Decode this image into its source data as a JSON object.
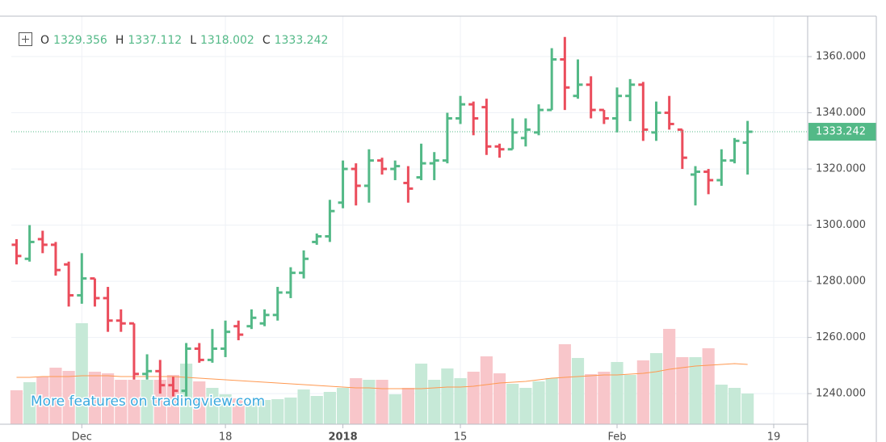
{
  "chart_data": {
    "type": "ohlc",
    "legend_labels": [
      "O",
      "H",
      "L",
      "C"
    ],
    "watermark": "More features on tradingview.com",
    "up_color": "#53b987",
    "down_color": "#eb4d5c",
    "volume_up_color": "#c6e9d7",
    "volume_down_color": "#f8c6ca",
    "volume_ma_color": "#ff9850",
    "grid": true,
    "open": [
      1293,
      1288,
      1295,
      1293,
      1286,
      1275,
      1281,
      1274,
      1266,
      1265,
      1247,
      1248,
      1243,
      1241,
      1256,
      1252,
      1256,
      1264,
      1264,
      1265,
      1268,
      1276,
      1283,
      1294,
      1296,
      1308,
      1320,
      1314,
      1323,
      1320,
      1315,
      1317,
      1322,
      1323,
      1338,
      1343,
      1342,
      1328,
      1327,
      1331,
      1333,
      1341,
      1359,
      1346,
      1350,
      1341,
      1338,
      1346,
      1350,
      1333,
      1340,
      1334,
      1318,
      1319,
      1316,
      1323,
      1329.356
    ],
    "high": [
      1295,
      1300,
      1298,
      1294,
      1287,
      1290,
      1281,
      1278,
      1270,
      1265,
      1254,
      1252,
      1246,
      1258,
      1258,
      1263,
      1266,
      1266,
      1270,
      1270,
      1278,
      1285,
      1291,
      1297,
      1309,
      1323,
      1322,
      1327,
      1324,
      1323,
      1321,
      1329,
      1326,
      1340,
      1346,
      1344,
      1345,
      1329,
      1338,
      1338,
      1343,
      1363,
      1367,
      1359,
      1353,
      1341,
      1349,
      1352,
      1351,
      1344,
      1346,
      1334,
      1321,
      1320,
      1327,
      1331,
      1337.112
    ],
    "low": [
      1286,
      1287,
      1290,
      1282,
      1271,
      1272,
      1271,
      1262,
      1262,
      1245,
      1245,
      1240,
      1239,
      1239,
      1251,
      1251,
      1253,
      1259,
      1263,
      1264,
      1266,
      1274,
      1281,
      1293,
      1294,
      1306,
      1307,
      1308,
      1318,
      1316,
      1308,
      1316,
      1316,
      1322,
      1336,
      1332,
      1325,
      1324,
      1327,
      1328,
      1332,
      1341,
      1341,
      1345,
      1338,
      1336,
      1333,
      1337,
      1330,
      1330,
      1334,
      1320,
      1307,
      1311,
      1314,
      1322,
      1318.002
    ],
    "close": [
      1289,
      1294,
      1293,
      1284,
      1275,
      1281,
      1274,
      1266,
      1265,
      1247,
      1248,
      1243,
      1241,
      1256,
      1252,
      1256,
      1262,
      1261,
      1267,
      1268,
      1276,
      1283,
      1288,
      1296,
      1305,
      1320,
      1314,
      1323,
      1320,
      1321,
      1313,
      1322,
      1323,
      1338,
      1343,
      1338,
      1328,
      1327,
      1333,
      1334,
      1341,
      1359,
      1349,
      1350,
      1341,
      1338,
      1346,
      1350,
      1334,
      1340,
      1336,
      1324,
      1319,
      1316,
      1323,
      1330,
      1333.242
    ],
    "volume": [
      42,
      52,
      59,
      70,
      66,
      125,
      65,
      63,
      55,
      55,
      55,
      55,
      61,
      75,
      53,
      45,
      37,
      32,
      27,
      30,
      31,
      33,
      43,
      35,
      40,
      45,
      57,
      55,
      55,
      37,
      45,
      75,
      55,
      69,
      57,
      65,
      84,
      63,
      50,
      45,
      53,
      57,
      99,
      82,
      62,
      65,
      77,
      61,
      79,
      88,
      118,
      83,
      83,
      94,
      49,
      45,
      38
    ],
    "volume_ma": [
      58,
      58,
      59,
      59,
      59,
      60,
      60,
      60,
      59,
      59,
      59,
      59,
      59,
      58,
      57,
      56,
      55,
      54,
      53,
      52,
      51,
      50,
      49,
      48,
      47,
      46,
      45,
      45,
      44,
      44,
      44,
      44,
      45,
      46,
      46,
      47,
      49,
      51,
      52,
      53,
      55,
      57,
      58,
      59,
      60,
      61,
      61,
      62,
      63,
      65,
      68,
      70,
      72,
      73,
      74,
      75,
      74
    ],
    "volume_ylim": [
      0,
      505
    ],
    "xlim": [
      -0.4,
      60.6
    ],
    "xticks": [
      {
        "value": 5,
        "label": "Dec"
      },
      {
        "value": 16,
        "label": "18"
      },
      {
        "value": 25,
        "label": "2018",
        "bold": true
      },
      {
        "value": 34,
        "label": "15"
      },
      {
        "value": 46,
        "label": "Feb"
      },
      {
        "value": 58,
        "label": "19"
      }
    ],
    "ylim": [
      1229.1,
      1374.4
    ],
    "yticks": [
      {
        "value": 1240,
        "label": "1240.000"
      },
      {
        "value": 1260,
        "label": "1260.000"
      },
      {
        "value": 1280,
        "label": "1280.000"
      },
      {
        "value": 1300,
        "label": "1300.000"
      },
      {
        "value": 1320,
        "label": "1320.000"
      },
      {
        "value": 1340,
        "label": "1340.000"
      },
      {
        "value": 1360,
        "label": "1360.000"
      }
    ]
  }
}
